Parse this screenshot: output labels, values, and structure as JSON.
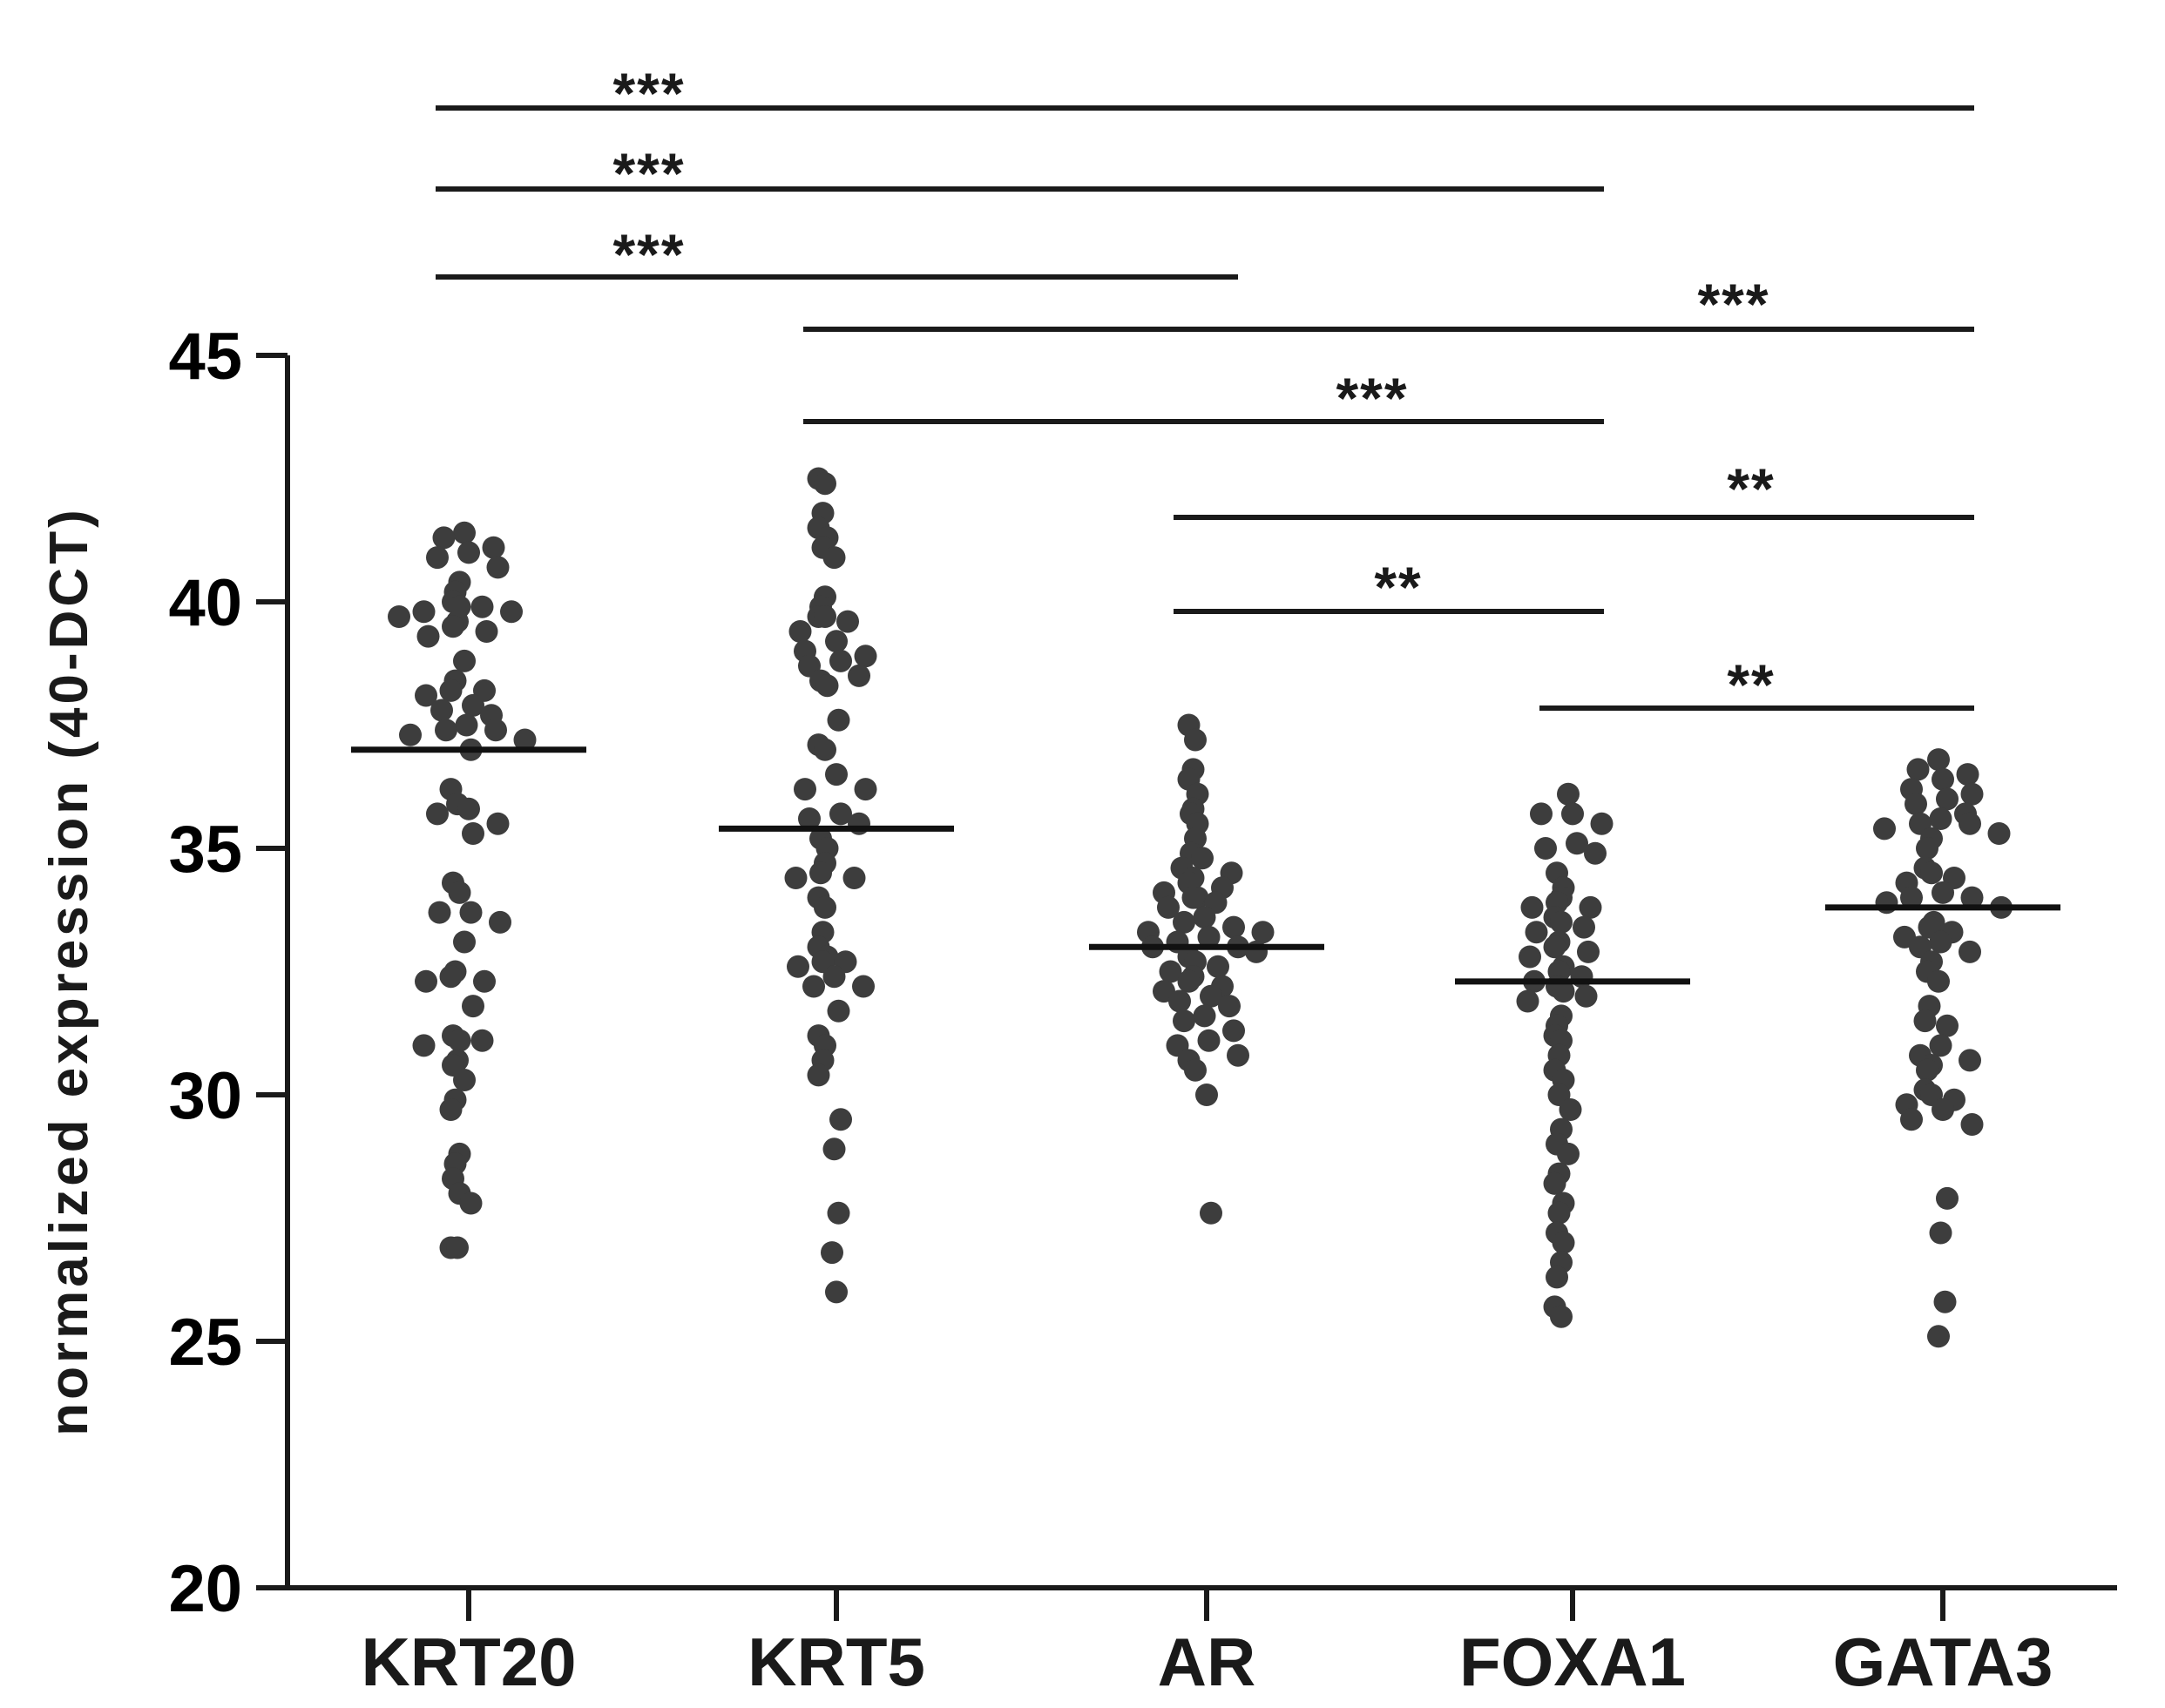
{
  "chart_data": {
    "type": "scatter",
    "subtype": "dot-plot with median lines",
    "title": "",
    "xlabel": "",
    "ylabel": "normalized expression (40-DCT)",
    "ylim": [
      20,
      45
    ],
    "yticks": [
      "20",
      "25",
      "30",
      "35",
      "40",
      "45"
    ],
    "grid": false,
    "legend": "none",
    "point_color": "#3d3d3d",
    "categories": [
      "KRT20",
      "KRT5",
      "AR",
      "FOXA1",
      "GATA3"
    ],
    "medians": [
      37.0,
      35.4,
      33.0,
      32.3,
      33.8
    ],
    "series": [
      {
        "category": "KRT20",
        "values": [
          41.3,
          41.0,
          40.7,
          40.4,
          40.9,
          41.1,
          41.4,
          40.2,
          40.0,
          39.9,
          39.8,
          39.6,
          39.4,
          39.7,
          39.8,
          39.9,
          39.5,
          39.3,
          38.8,
          38.4,
          38.2,
          38.1,
          37.9,
          37.8,
          37.7,
          38.2,
          37.5,
          37.4,
          37.3,
          37.2,
          37.4,
          37.0,
          36.2,
          35.9,
          35.7,
          35.5,
          35.3,
          35.8,
          34.3,
          34.1,
          33.7,
          33.5,
          33.1,
          33.7,
          32.4,
          32.3,
          32.3,
          31.8,
          32.5,
          31.2,
          31.0,
          31.1,
          30.7,
          30.6,
          30.3,
          31.1,
          29.9,
          29.7,
          28.8,
          28.6,
          28.3,
          28.0,
          27.8,
          26.9,
          26.9
        ],
        "median": 37.0
      },
      {
        "category": "KRT5",
        "values": [
          42.5,
          42.4,
          41.8,
          41.5,
          41.3,
          41.1,
          40.9,
          40.1,
          39.9,
          39.7,
          39.7,
          39.6,
          39.4,
          39.2,
          39.0,
          38.9,
          38.8,
          38.7,
          38.5,
          38.4,
          38.3,
          37.6,
          37.1,
          37.0,
          36.5,
          36.2,
          36.2,
          35.7,
          35.6,
          35.5,
          35.2,
          35.0,
          34.7,
          34.5,
          34.4,
          34.4,
          34.0,
          33.8,
          33.3,
          33.0,
          32.8,
          32.7,
          32.7,
          32.6,
          32.4,
          32.2,
          32.2,
          31.7,
          31.2,
          31.0,
          30.7,
          30.4,
          29.5,
          28.9,
          27.6,
          26.8,
          26.0
        ],
        "median": 35.4
      },
      {
        "category": "AR",
        "values": [
          37.5,
          37.2,
          36.6,
          36.4,
          36.1,
          35.8,
          35.7,
          35.5,
          35.2,
          34.9,
          34.8,
          34.6,
          34.5,
          34.4,
          34.3,
          34.2,
          34.1,
          34.0,
          34.0,
          33.9,
          33.8,
          33.6,
          33.5,
          33.4,
          33.3,
          33.3,
          33.2,
          33.1,
          33.0,
          33.0,
          32.9,
          32.8,
          32.7,
          32.6,
          32.5,
          32.4,
          32.3,
          32.2,
          32.1,
          32.0,
          31.9,
          31.8,
          31.6,
          31.5,
          31.3,
          31.1,
          31.0,
          30.8,
          30.7,
          30.5,
          30.0,
          27.6
        ],
        "median": 33.0
      },
      {
        "category": "FOXA1",
        "values": [
          36.1,
          35.7,
          35.7,
          35.5,
          35.1,
          35.0,
          34.9,
          34.5,
          34.2,
          34.0,
          33.9,
          33.8,
          33.8,
          33.6,
          33.5,
          33.4,
          33.3,
          33.1,
          33.0,
          32.9,
          32.8,
          32.6,
          32.5,
          32.4,
          32.3,
          32.2,
          32.1,
          32.0,
          31.9,
          31.6,
          31.4,
          31.2,
          31.1,
          30.8,
          30.5,
          30.3,
          30.0,
          29.7,
          29.3,
          29.0,
          28.8,
          28.4,
          28.2,
          27.8,
          27.6,
          27.2,
          27.0,
          26.6,
          26.3,
          25.7,
          25.5
        ],
        "median": 32.3
      },
      {
        "category": "GATA3",
        "values": [
          36.8,
          36.6,
          36.5,
          36.4,
          36.2,
          36.1,
          36.0,
          35.9,
          35.7,
          35.6,
          35.5,
          35.5,
          35.4,
          35.3,
          35.2,
          35.0,
          34.6,
          34.5,
          34.4,
          34.3,
          34.1,
          34.0,
          34.0,
          33.9,
          33.8,
          33.5,
          33.4,
          33.3,
          33.2,
          33.1,
          33.0,
          32.9,
          32.7,
          32.5,
          32.3,
          31.8,
          31.5,
          31.4,
          31.0,
          30.8,
          30.7,
          30.6,
          30.5,
          30.1,
          30.0,
          29.9,
          29.8,
          29.7,
          29.5,
          29.4,
          27.9,
          27.2,
          25.8,
          25.1
        ],
        "median": 33.8
      }
    ],
    "significance": [
      {
        "from": "KRT20",
        "to": "GATA3",
        "label": "***"
      },
      {
        "from": "KRT20",
        "to": "FOXA1",
        "label": "***"
      },
      {
        "from": "KRT20",
        "to": "AR",
        "label": "***"
      },
      {
        "from": "KRT5",
        "to": "GATA3",
        "label": "***"
      },
      {
        "from": "KRT5",
        "to": "FOXA1",
        "label": "***"
      },
      {
        "from": "AR",
        "to": "GATA3",
        "label": "**"
      },
      {
        "from": "AR",
        "to": "FOXA1",
        "label": "**"
      },
      {
        "from": "FOXA1",
        "to": "GATA3",
        "label": "**"
      }
    ]
  }
}
